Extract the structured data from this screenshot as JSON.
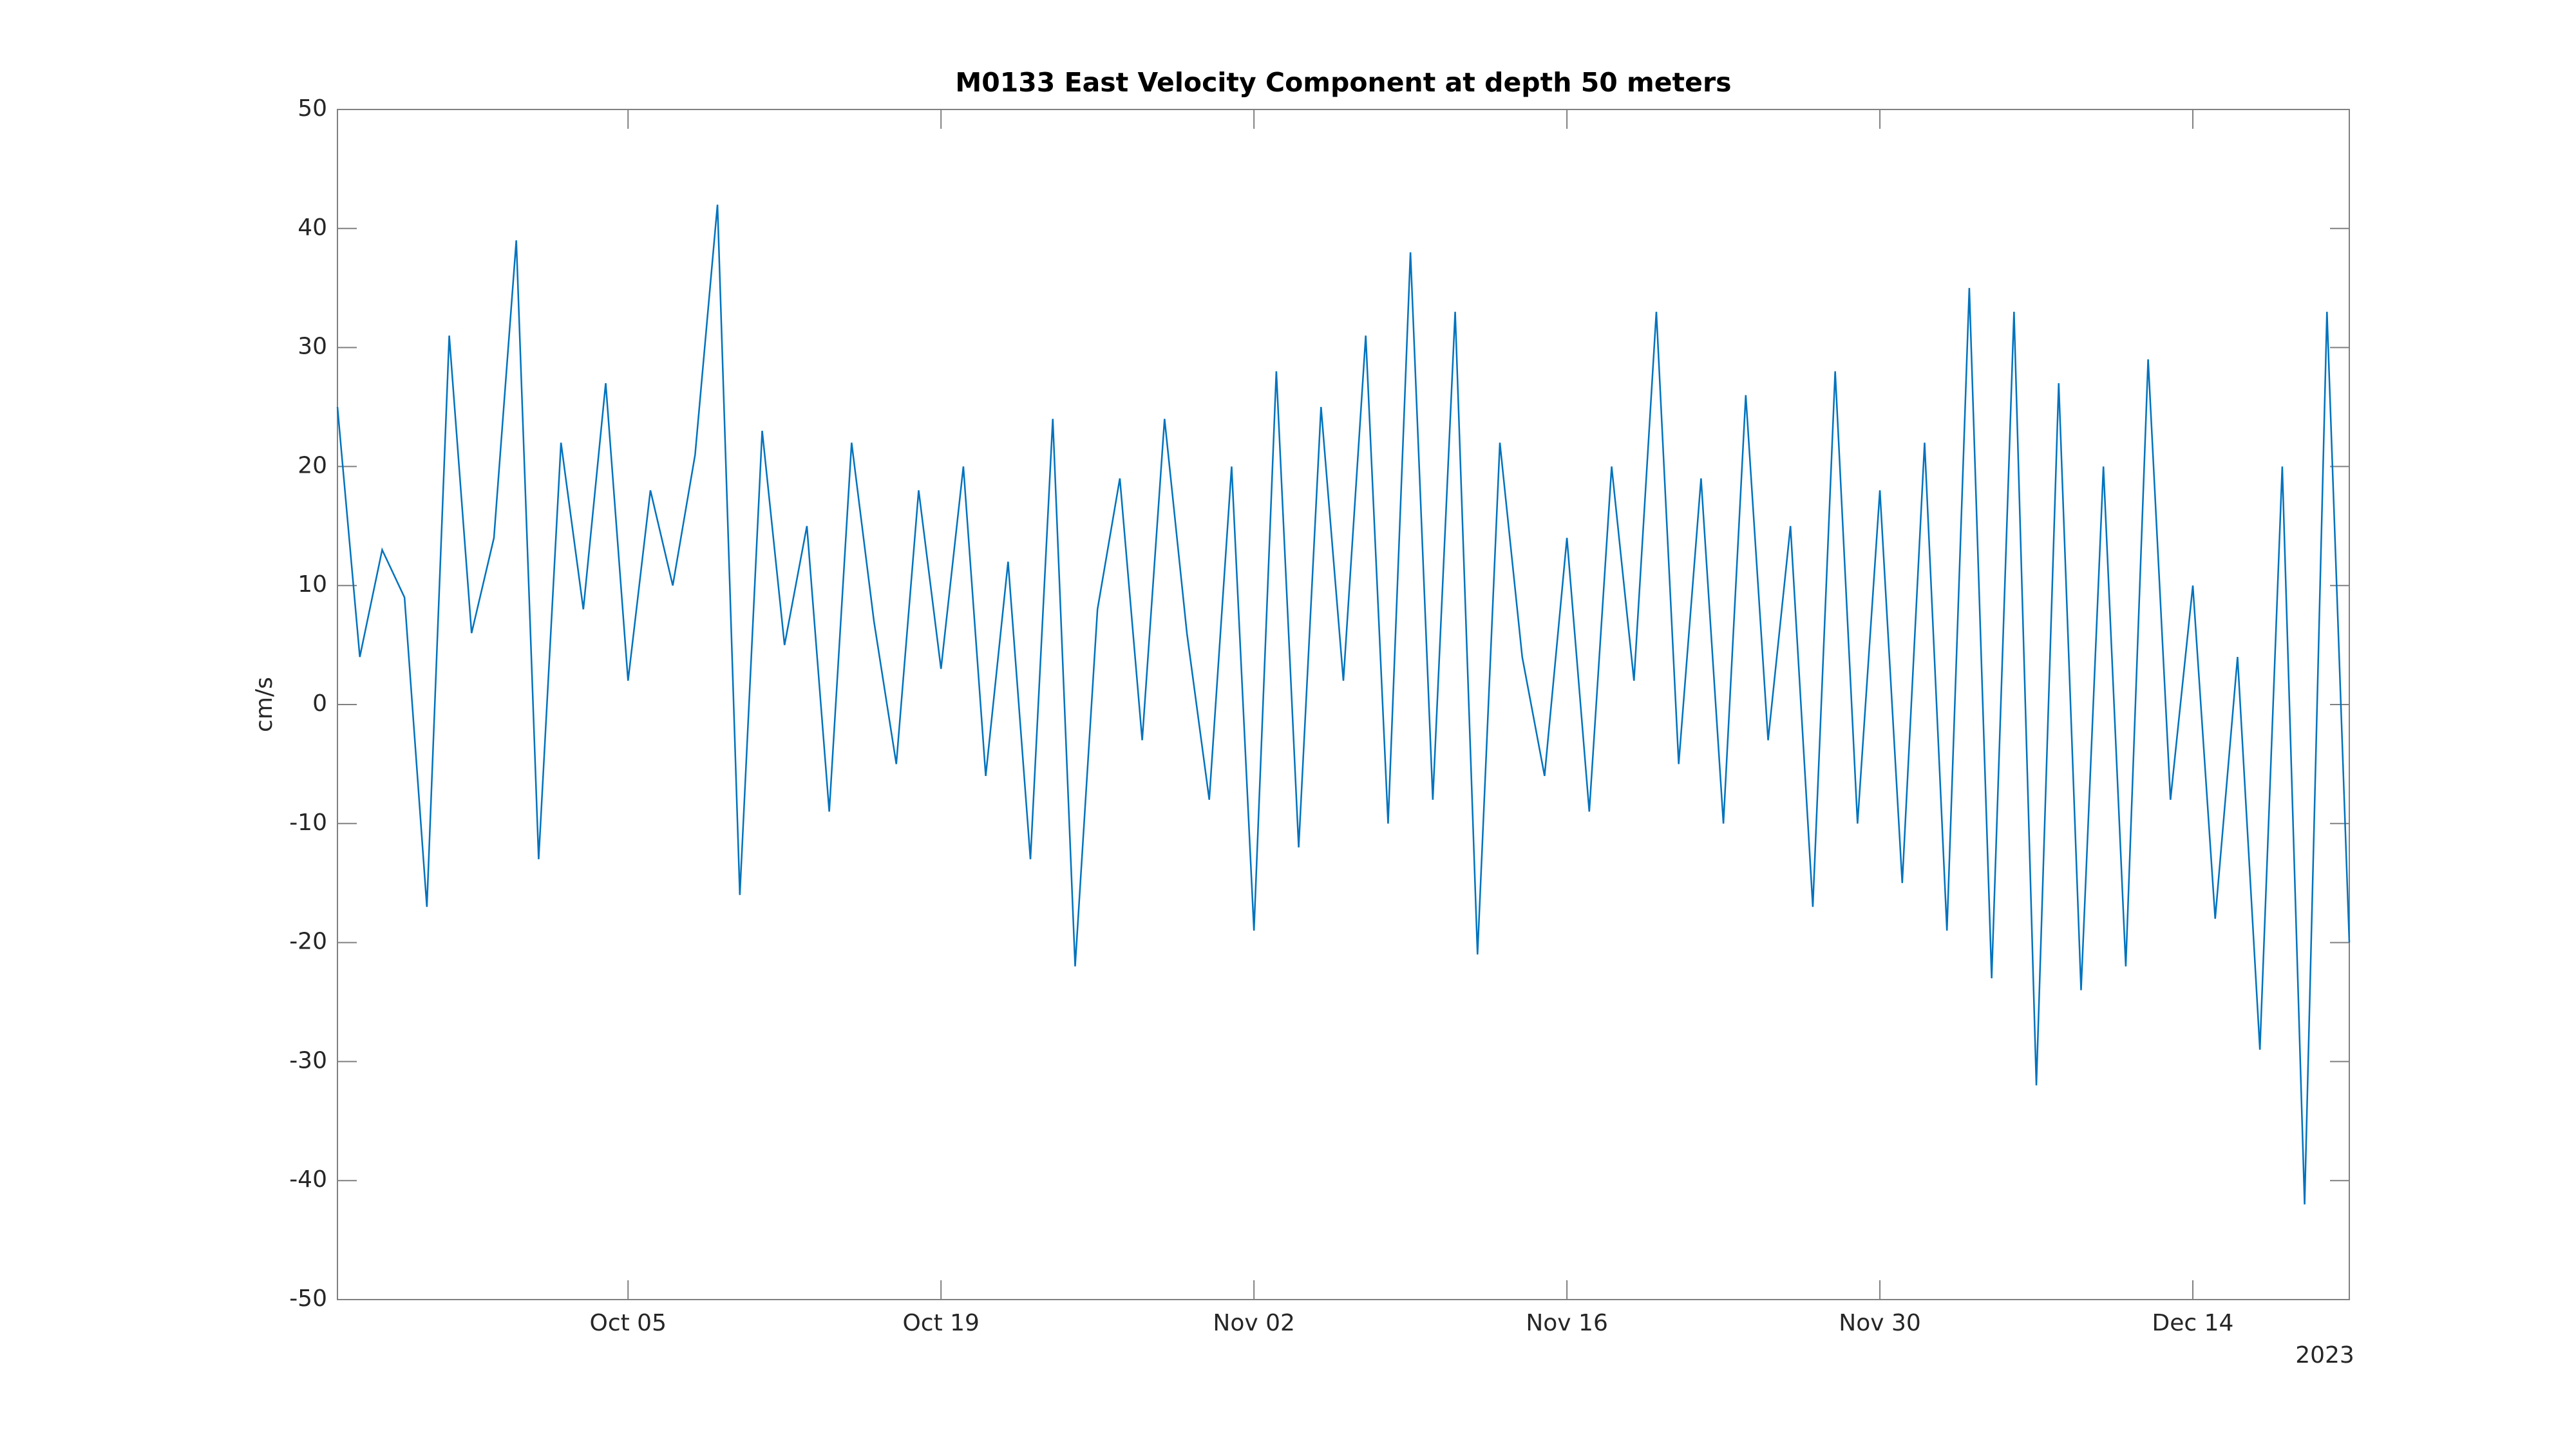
{
  "chart_data": {
    "type": "line",
    "title": "M0133 East Velocity Component at depth 50 meters",
    "ylabel": "cm/s",
    "x_year_label": "2023",
    "x": [
      "2023-09-22",
      "2023-09-23",
      "2023-09-24",
      "2023-09-25",
      "2023-09-26",
      "2023-09-27",
      "2023-09-28",
      "2023-09-29",
      "2023-09-30",
      "2023-10-01",
      "2023-10-02",
      "2023-10-03",
      "2023-10-04",
      "2023-10-05",
      "2023-10-06",
      "2023-10-07",
      "2023-10-08",
      "2023-10-09",
      "2023-10-10",
      "2023-10-11",
      "2023-10-12",
      "2023-10-13",
      "2023-10-14",
      "2023-10-15",
      "2023-10-16",
      "2023-10-17",
      "2023-10-18",
      "2023-10-19",
      "2023-10-20",
      "2023-10-21",
      "2023-10-22",
      "2023-10-23",
      "2023-10-24",
      "2023-10-25",
      "2023-10-26",
      "2023-10-27",
      "2023-10-28",
      "2023-10-29",
      "2023-10-30",
      "2023-10-31",
      "2023-11-01",
      "2023-11-02",
      "2023-11-03",
      "2023-11-04",
      "2023-11-05",
      "2023-11-06",
      "2023-11-07",
      "2023-11-08",
      "2023-11-09",
      "2023-11-10",
      "2023-11-11",
      "2023-11-12",
      "2023-11-13",
      "2023-11-14",
      "2023-11-15",
      "2023-11-16",
      "2023-11-17",
      "2023-11-18",
      "2023-11-19",
      "2023-11-20",
      "2023-11-21",
      "2023-11-22",
      "2023-11-23",
      "2023-11-24",
      "2023-11-25",
      "2023-11-26",
      "2023-11-27",
      "2023-11-28",
      "2023-11-29",
      "2023-11-30",
      "2023-12-01",
      "2023-12-02",
      "2023-12-03",
      "2023-12-04",
      "2023-12-05",
      "2023-12-06",
      "2023-12-07",
      "2023-12-08",
      "2023-12-09",
      "2023-12-10",
      "2023-12-11",
      "2023-12-12",
      "2023-12-13",
      "2023-12-14",
      "2023-12-15",
      "2023-12-16",
      "2023-12-17",
      "2023-12-18",
      "2023-12-19",
      "2023-12-20",
      "2023-12-21"
    ],
    "series": [
      {
        "name": "East velocity",
        "color": "#0072bd",
        "values": [
          25,
          4,
          13,
          9,
          -17,
          31,
          6,
          14,
          39,
          -13,
          22,
          8,
          27,
          2,
          18,
          10,
          21,
          42,
          -16,
          23,
          5,
          15,
          -9,
          22,
          7,
          -5,
          18,
          3,
          20,
          -6,
          12,
          -13,
          24,
          -22,
          8,
          19,
          -3,
          24,
          6,
          -8,
          20,
          -19,
          28,
          -12,
          25,
          2,
          31,
          -10,
          38,
          -8,
          33,
          -21,
          22,
          4,
          -6,
          14,
          -9,
          20,
          2,
          33,
          -5,
          19,
          -10,
          26,
          -3,
          15,
          -17,
          28,
          -10,
          18,
          -15,
          22,
          -19,
          35,
          -23,
          33,
          -32,
          27,
          -24,
          20,
          -22,
          29,
          -8,
          10,
          -18,
          4,
          -29,
          20,
          -42,
          33,
          -20
        ]
      }
    ],
    "xlim": [
      "2023-09-22",
      "2023-12-21"
    ],
    "xticks": [
      {
        "value": "2023-10-05",
        "label": "Oct 05"
      },
      {
        "value": "2023-10-19",
        "label": "Oct 19"
      },
      {
        "value": "2023-11-02",
        "label": "Nov 02"
      },
      {
        "value": "2023-11-16",
        "label": "Nov 16"
      },
      {
        "value": "2023-11-30",
        "label": "Nov 30"
      },
      {
        "value": "2023-12-14",
        "label": "Dec 14"
      }
    ],
    "ylim": [
      -50,
      50
    ],
    "yticks": [
      -50,
      -40,
      -30,
      -20,
      -10,
      0,
      10,
      20,
      30,
      40,
      50
    ],
    "grid": false
  }
}
